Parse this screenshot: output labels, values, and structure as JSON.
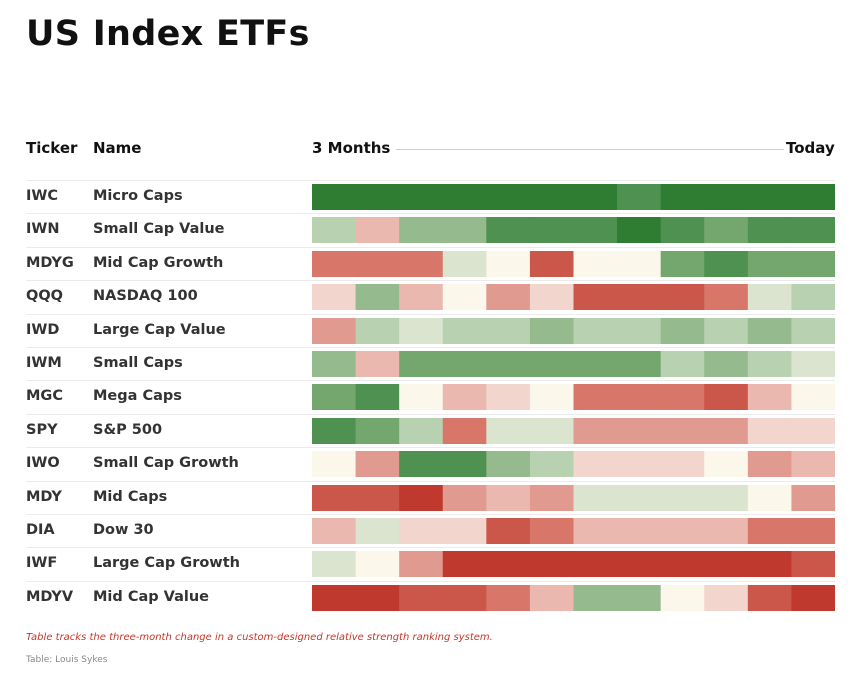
{
  "title": "US Index ETFs",
  "headers": {
    "ticker": "Ticker",
    "name": "Name",
    "start": "3 Months",
    "end": "Today"
  },
  "note": "Table tracks the three-month change in a custom-designed relative strength ranking system.",
  "source": "Table: Louis Sykes",
  "colors": {
    "g4": "#2e7d32",
    "g3": "#4e9150",
    "g2": "#74a76e",
    "g1": "#95ba8d",
    "g0": "#b8d1b0",
    "n1": "#dbe4cf",
    "n0": "#fbf7ea",
    "r0": "#f2d5cc",
    "r1": "#eab8ae",
    "r2": "#e09a8f",
    "r3": "#d87669",
    "r4": "#cb574a",
    "r5": "#c0392e"
  },
  "chart_data": {
    "type": "heatmap",
    "xlabel_start": "3 Months",
    "xlabel_end": "Today",
    "periods": 12,
    "rows": [
      {
        "ticker": "IWC",
        "name": "Micro Caps",
        "cells": [
          "g4",
          "g4",
          "g4",
          "g4",
          "g4",
          "g4",
          "g4",
          "g3",
          "g4",
          "g4",
          "g4",
          "g4"
        ]
      },
      {
        "ticker": "IWN",
        "name": "Small Cap Value",
        "cells": [
          "g0",
          "r1",
          "g1",
          "g1",
          "g3",
          "g3",
          "g3",
          "g4",
          "g3",
          "g2",
          "g3",
          "g3"
        ]
      },
      {
        "ticker": "MDYG",
        "name": "Mid Cap Growth",
        "cells": [
          "r3",
          "r3",
          "r3",
          "n1",
          "n0",
          "r4",
          "n0",
          "n0",
          "g2",
          "g3",
          "g2",
          "g2"
        ]
      },
      {
        "ticker": "QQQ",
        "name": "NASDAQ 100",
        "cells": [
          "r0",
          "g1",
          "r1",
          "n0",
          "r2",
          "r0",
          "r4",
          "r4",
          "r4",
          "r3",
          "n1",
          "g0"
        ]
      },
      {
        "ticker": "IWD",
        "name": "Large Cap Value",
        "cells": [
          "r2",
          "g0",
          "n1",
          "g0",
          "g0",
          "g1",
          "g0",
          "g0",
          "g1",
          "g0",
          "g1",
          "g0"
        ]
      },
      {
        "ticker": "IWM",
        "name": "Small Caps",
        "cells": [
          "g1",
          "r1",
          "g2",
          "g2",
          "g2",
          "g2",
          "g2",
          "g2",
          "g0",
          "g1",
          "g0",
          "n1"
        ]
      },
      {
        "ticker": "MGC",
        "name": "Mega Caps",
        "cells": [
          "g2",
          "g3",
          "n0",
          "r1",
          "r0",
          "n0",
          "r3",
          "r3",
          "r3",
          "r4",
          "r1",
          "n0"
        ]
      },
      {
        "ticker": "SPY",
        "name": "S&P 500",
        "cells": [
          "g3",
          "g2",
          "g0",
          "r3",
          "n1",
          "n1",
          "r2",
          "r2",
          "r2",
          "r2",
          "r0",
          "r0"
        ]
      },
      {
        "ticker": "IWO",
        "name": "Small Cap Growth",
        "cells": [
          "n0",
          "r2",
          "g3",
          "g3",
          "g1",
          "g0",
          "r0",
          "r0",
          "r0",
          "n0",
          "r2",
          "r1"
        ]
      },
      {
        "ticker": "MDY",
        "name": "Mid Caps",
        "cells": [
          "r4",
          "r4",
          "r5",
          "r2",
          "r1",
          "r2",
          "n1",
          "n1",
          "n1",
          "n1",
          "n0",
          "r2"
        ]
      },
      {
        "ticker": "DIA",
        "name": "Dow 30",
        "cells": [
          "r1",
          "n1",
          "r0",
          "r0",
          "r4",
          "r3",
          "r1",
          "r1",
          "r1",
          "r1",
          "r3",
          "r3"
        ]
      },
      {
        "ticker": "IWF",
        "name": "Large Cap Growth",
        "cells": [
          "n1",
          "n0",
          "r2",
          "r5",
          "r5",
          "r5",
          "r5",
          "r5",
          "r5",
          "r5",
          "r5",
          "r4"
        ]
      },
      {
        "ticker": "MDYV",
        "name": "Mid Cap Value",
        "cells": [
          "r5",
          "r5",
          "r4",
          "r4",
          "r3",
          "r1",
          "g1",
          "g1",
          "n0",
          "r0",
          "r4",
          "r5"
        ]
      }
    ]
  }
}
